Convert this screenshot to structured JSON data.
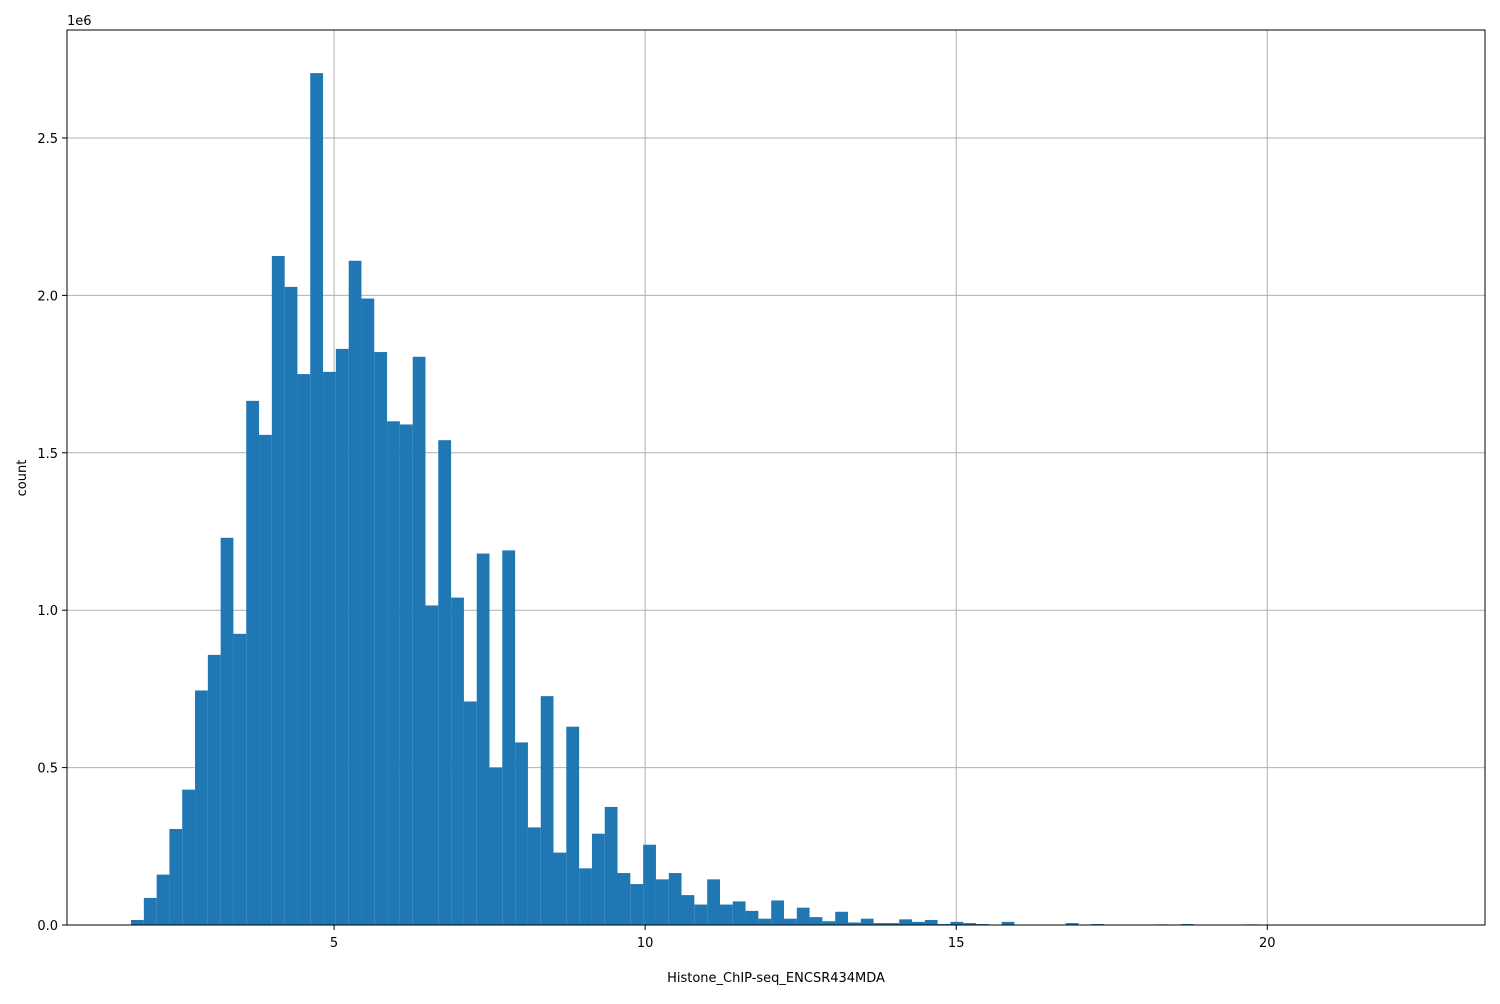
{
  "chart_data": {
    "type": "histogram",
    "xlabel": "Histone_ChIP-seq_ENCSR434MDA",
    "ylabel": "count",
    "y_offset_label": "1e6",
    "color": "#1f77b4",
    "grid": true,
    "bins": [
      1.736,
      1.942,
      2.148,
      2.353,
      2.559,
      2.765,
      2.971,
      3.177,
      3.382,
      3.588,
      3.794,
      4.0,
      4.206,
      4.411,
      4.617,
      4.823,
      5.029,
      5.235,
      5.44,
      5.646,
      5.852,
      6.058,
      6.264,
      6.469,
      6.675,
      6.881,
      7.087,
      7.293,
      7.498,
      7.704,
      7.91,
      8.116,
      8.322,
      8.527,
      8.733,
      8.939,
      9.145,
      9.351,
      9.556,
      9.762,
      9.968,
      10.174,
      10.38,
      10.585,
      10.791,
      10.997,
      11.203,
      11.409,
      11.614,
      11.82,
      12.026,
      12.232,
      12.438,
      12.643,
      12.849,
      13.055,
      13.261,
      13.467,
      13.672,
      13.878,
      14.084,
      14.29,
      14.496,
      14.701,
      14.907,
      15.113,
      15.319,
      15.525,
      15.73,
      15.936,
      16.142,
      16.348,
      16.554,
      16.759,
      16.965,
      17.171,
      17.377,
      17.583,
      17.788,
      17.994,
      18.2,
      18.406,
      18.612,
      18.817,
      19.023,
      19.229,
      19.435,
      19.641,
      19.846,
      20.052,
      20.258,
      20.464,
      20.67,
      20.875,
      21.081,
      21.287,
      21.493,
      21.699,
      21.904,
      22.11,
      22.316
    ],
    "values": [
      16000,
      86000,
      160000,
      305000,
      430000,
      745000,
      858000,
      1230000,
      925000,
      1665000,
      1557000,
      2125000,
      2027000,
      1750000,
      2706000,
      1757000,
      1830000,
      2110000,
      1990000,
      1820000,
      1600000,
      1590000,
      1805000,
      1015000,
      1540000,
      1040000,
      710000,
      1180000,
      500000,
      1190000,
      580000,
      310000,
      727000,
      230000,
      630000,
      180000,
      290000,
      375000,
      165000,
      130000,
      255000,
      145000,
      165000,
      95000,
      65000,
      145000,
      65000,
      75000,
      45000,
      20000,
      78000,
      20000,
      55000,
      25000,
      12000,
      42000,
      8000,
      20000,
      6000,
      6000,
      18000,
      10000,
      16000,
      3000,
      10000,
      6000,
      3000,
      0,
      10000,
      0,
      0,
      0,
      0,
      6000,
      0,
      3000,
      0,
      0,
      0,
      0,
      2000,
      0,
      3000,
      0,
      0,
      0,
      0,
      2000,
      0,
      0,
      0,
      0,
      0,
      0,
      0,
      0,
      0,
      0,
      0,
      0
    ],
    "xlim": [
      0.707,
      23.5
    ],
    "ylim": [
      0,
      2843000
    ],
    "xticks": [
      5,
      10,
      15,
      20
    ],
    "yticks": [
      {
        "value": 0,
        "label": "0.0"
      },
      {
        "value": 500000,
        "label": "0.5"
      },
      {
        "value": 1000000,
        "label": "1.0"
      },
      {
        "value": 1500000,
        "label": "1.5"
      },
      {
        "value": 2000000,
        "label": "2.0"
      },
      {
        "value": 2500000,
        "label": "2.5"
      }
    ]
  }
}
